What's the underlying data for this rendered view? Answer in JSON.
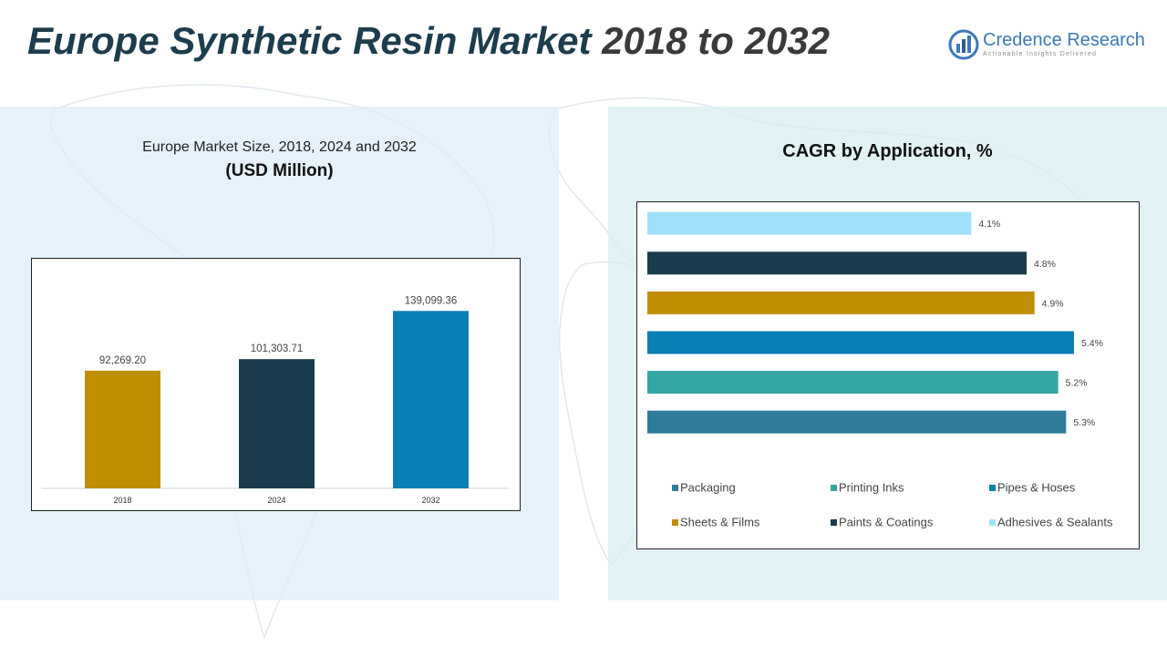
{
  "header": {
    "title_part1": "Europe Synthetic Resin Market",
    "title_part2": "2018 to 2032"
  },
  "logo": {
    "name": "Credence Research",
    "tagline": "Actionable Insights Delivered"
  },
  "colors": {
    "title_dark": "#1c3d4d",
    "gold": "#c08e02",
    "navy": "#1a3c4c",
    "blue": "#0a7fb4",
    "teal": "#33a6a3",
    "steel": "#2e7b9a",
    "light_blue": "#9fe1fb"
  },
  "chart_data": [
    {
      "type": "bar",
      "title": "Europe Market Size, 2018, 2024 and 2032",
      "subtitle": "(USD Million)",
      "categories": [
        "2018",
        "2024",
        "2032"
      ],
      "values": [
        92269.2,
        101303.71,
        139099.36
      ],
      "data_labels": [
        "92,269.20",
        "101,303.71",
        "139,099.36"
      ],
      "colors": [
        "#c08e02",
        "#1a3c4c",
        "#0a7fb4"
      ],
      "ylim": [
        0,
        160000
      ],
      "grid": false
    },
    {
      "type": "bar",
      "orientation": "horizontal",
      "title": "CAGR by Application, %",
      "categories": [
        "Packaging",
        "Printing Inks",
        "Pipes & Hoses",
        "Sheets & Films",
        "Paints & Coatings",
        "Adhesives & Sealants"
      ],
      "values": [
        5.3,
        5.2,
        5.4,
        4.9,
        4.8,
        4.1
      ],
      "data_labels": [
        "5.3%",
        "5.2%",
        "5.4%",
        "4.9%",
        "4.8%",
        "4.1%"
      ],
      "colors": [
        "#2e7b9a",
        "#33a6a3",
        "#0a7fb4",
        "#c08e02",
        "#1a3c4c",
        "#9fe1fb"
      ],
      "xlim": [
        0,
        6.0
      ],
      "grid": false,
      "legend_position": "bottom"
    }
  ]
}
